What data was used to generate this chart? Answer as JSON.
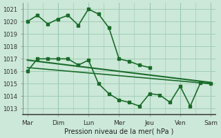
{
  "xlabel": "Pression niveau de la mer( hPa )",
  "background_color": "#cce8d8",
  "grid_color": "#99c9b0",
  "line_color": "#1a6b2a",
  "ylim": [
    1012.5,
    1021.5
  ],
  "yticks": [
    1013,
    1014,
    1015,
    1016,
    1017,
    1018,
    1019,
    1020,
    1021
  ],
  "x_labels": [
    "Mar",
    "Dim",
    "Lun",
    "Mer",
    "Jeu",
    "Ven",
    "Sam"
  ],
  "x_ticks": [
    0,
    1,
    2,
    3,
    4,
    5,
    6
  ],
  "xlim": [
    -0.15,
    6.15
  ],
  "lines": [
    {
      "x": [
        0,
        0.33,
        0.67,
        1.0,
        1.33,
        1.67,
        2.0,
        2.33,
        2.67,
        3.0,
        3.33,
        3.67,
        4.0
      ],
      "y": [
        1020.0,
        1020.5,
        1019.8,
        1020.2,
        1020.5,
        1019.7,
        1021.0,
        1020.6,
        1019.5,
        1017.0,
        1016.8,
        1016.5,
        1016.3
      ],
      "marker": "s",
      "marker_size": 2.5,
      "linewidth": 1.2
    },
    {
      "x": [
        0,
        6
      ],
      "y": [
        1016.9,
        1015.1
      ],
      "marker": null,
      "marker_size": 0,
      "linewidth": 1.5
    },
    {
      "x": [
        0,
        6
      ],
      "y": [
        1016.3,
        1015.0
      ],
      "marker": null,
      "marker_size": 0,
      "linewidth": 1.2
    },
    {
      "x": [
        0,
        0.33,
        0.67,
        1.0,
        1.33,
        1.67,
        2.0,
        2.33,
        2.67,
        3.0,
        3.33,
        3.67,
        4.0,
        4.33,
        4.67,
        5.0,
        5.33,
        5.67,
        6.0
      ],
      "y": [
        1016.0,
        1017.0,
        1017.0,
        1017.0,
        1017.0,
        1016.5,
        1016.9,
        1015.0,
        1014.2,
        1013.7,
        1013.5,
        1013.2,
        1014.2,
        1014.1,
        1013.5,
        1014.8,
        1013.2,
        1015.1,
        1015.0
      ],
      "marker": "s",
      "marker_size": 2.5,
      "linewidth": 1.2
    }
  ]
}
